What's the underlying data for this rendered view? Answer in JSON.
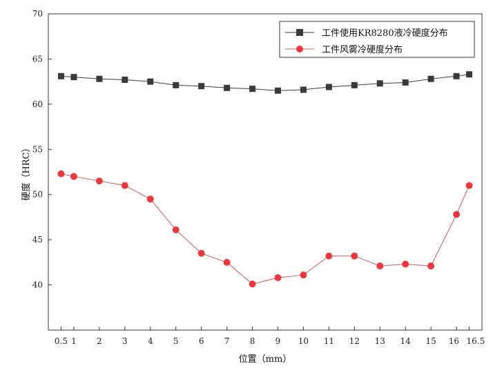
{
  "chart_data": {
    "type": "line",
    "title": "",
    "xlabel": "位置（mm）",
    "ylabel": "硬度（HRC）",
    "xlim": [
      0.0,
      17.0
    ],
    "ylim": [
      35,
      70
    ],
    "x_ticks": [
      "0.5",
      "1",
      "2",
      "3",
      "4",
      "5",
      "6",
      "7",
      "8",
      "9",
      "10",
      "11",
      "12",
      "13",
      "14",
      "15",
      "16",
      "16.5"
    ],
    "y_ticks": [
      "40",
      "45",
      "50",
      "55",
      "60",
      "65",
      "70"
    ],
    "x": [
      0.5,
      1,
      2,
      3,
      4,
      5,
      6,
      7,
      8,
      9,
      10,
      11,
      12,
      13,
      14,
      15,
      16,
      16.5
    ],
    "series": [
      {
        "name": "工件使用KR8280液冷硬度分布",
        "marker": "square",
        "color": "#3a3a3a",
        "values": [
          63.1,
          63.0,
          62.8,
          62.7,
          62.5,
          62.1,
          62.0,
          61.8,
          61.7,
          61.5,
          61.6,
          61.9,
          62.1,
          62.3,
          62.4,
          62.8,
          63.1,
          63.3
        ]
      },
      {
        "name": "工件风雾冷硬度分布",
        "marker": "circle",
        "color": "#e8393e",
        "values": [
          52.3,
          52.0,
          51.5,
          51.0,
          49.5,
          46.1,
          43.5,
          42.5,
          40.1,
          40.8,
          41.1,
          43.2,
          43.2,
          42.1,
          42.3,
          42.1,
          47.8,
          51.0
        ]
      }
    ],
    "grid": false,
    "legend_position": "top-right"
  }
}
